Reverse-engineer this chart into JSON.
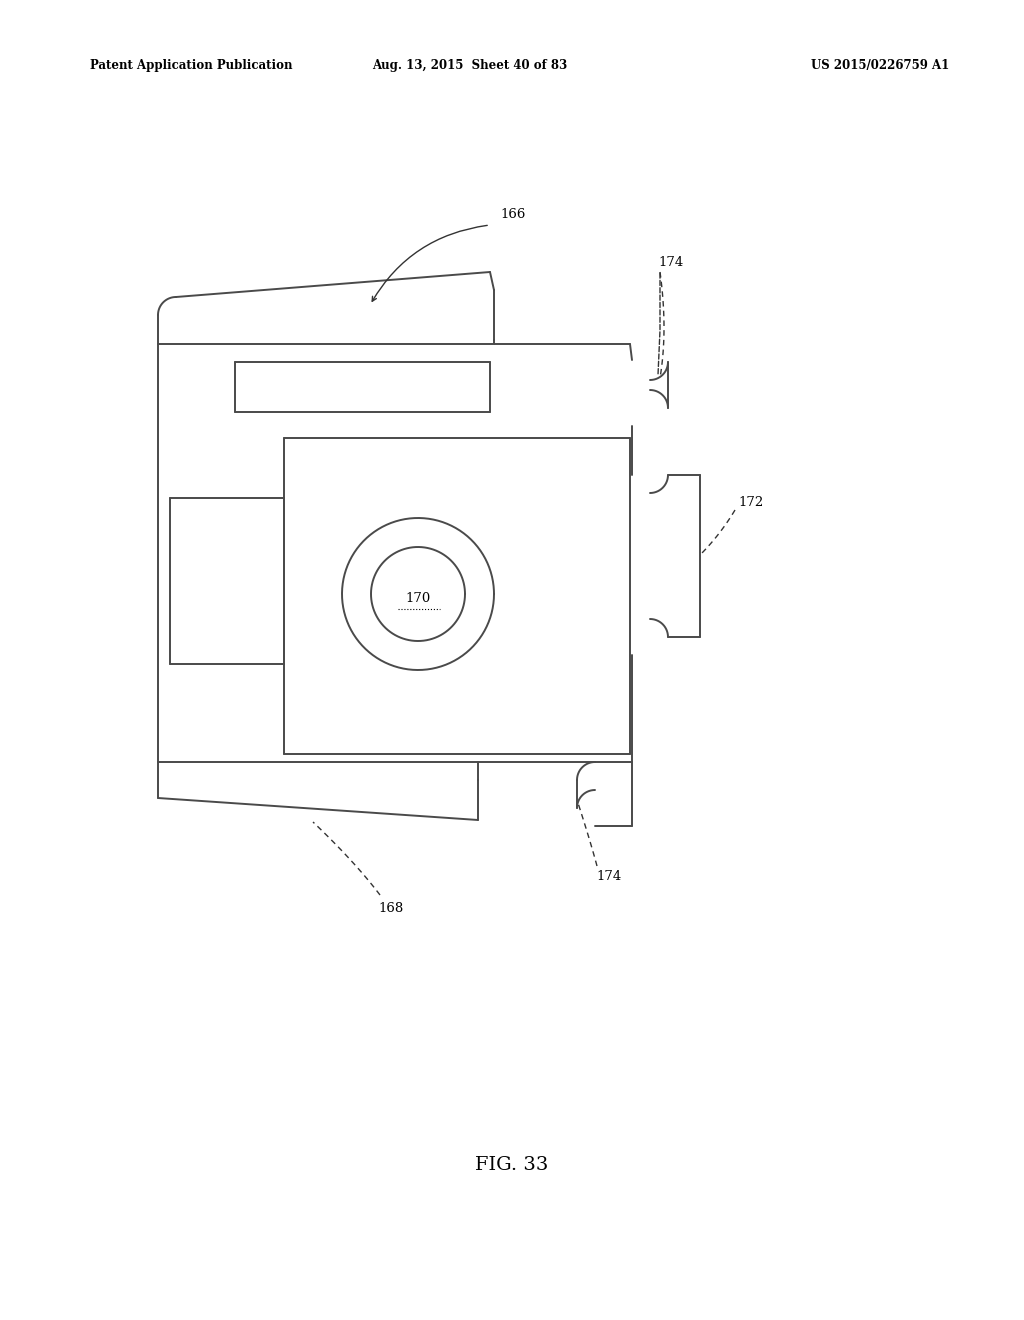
{
  "background_color": "#ffffff",
  "line_color": "#4a4a4a",
  "text_color": "#000000",
  "header_left": "Patent Application Publication",
  "header_center": "Aug. 13, 2015  Sheet 40 of 83",
  "header_right": "US 2015/0226759 A1",
  "figure_label": "FIG. 33"
}
